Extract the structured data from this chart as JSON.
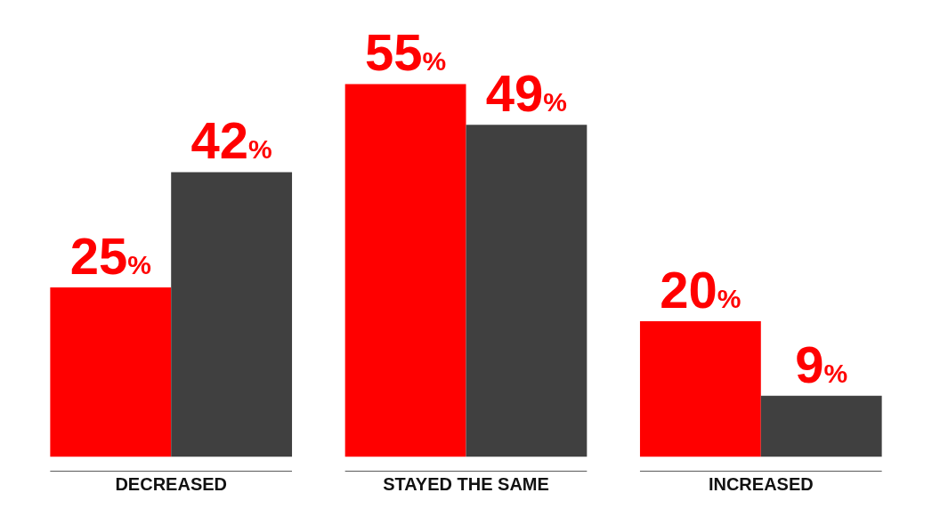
{
  "chart_data": {
    "type": "bar",
    "categories": [
      "DECREASED",
      "STAYED THE SAME",
      "INCREASED"
    ],
    "series": [
      {
        "color": "#ff0000",
        "values": [
          25,
          55,
          20
        ],
        "value_labels": [
          "25%",
          "55%",
          "20%"
        ]
      },
      {
        "color": "#404040",
        "values": [
          42,
          49,
          9
        ],
        "value_labels": [
          "42%",
          "49%",
          "9%"
        ]
      }
    ]
  }
}
